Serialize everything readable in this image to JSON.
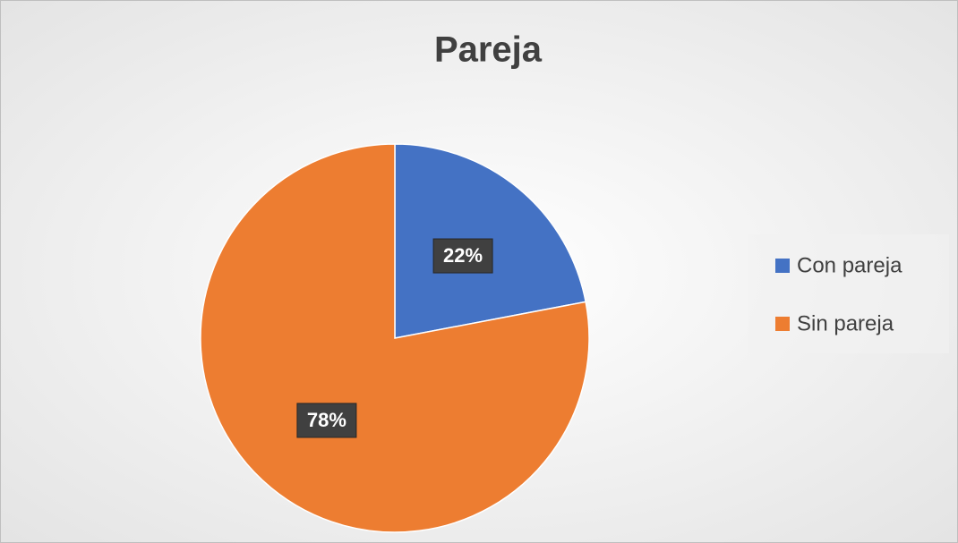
{
  "chart_data": {
    "type": "pie",
    "title": "Pareja",
    "categories": [
      "Con pareja",
      "Sin pareja"
    ],
    "values": [
      22,
      78
    ],
    "value_labels": [
      "22%",
      "78%"
    ],
    "colors": [
      "#4472c4",
      "#ed7d31"
    ],
    "legend": "right"
  }
}
